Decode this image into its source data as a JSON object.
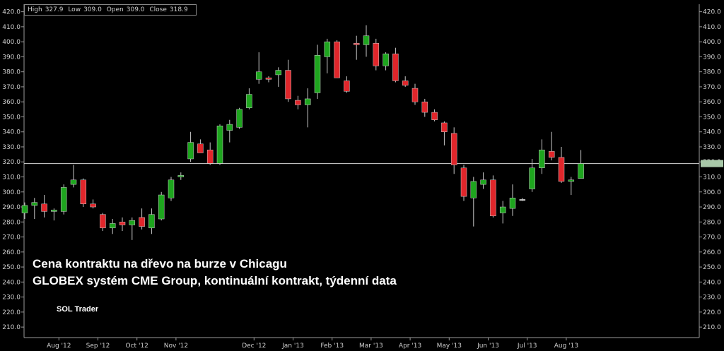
{
  "info": {
    "high_label": "High",
    "high": "327.9",
    "low_label": "Low",
    "low": "309.0",
    "open_label": "Open",
    "open": "309.0",
    "close_label": "Close",
    "close": "318.9"
  },
  "captions": {
    "line1": "Cena kontraktu na dřevo na burze v Chicagu",
    "line2": "GLOBEX systém CME Group, kontinuální kontrakt, týdenní data",
    "brand": "SOL Trader"
  },
  "colors": {
    "up": "#1ea51e",
    "down": "#e0262b",
    "neutral": "#c8c8c8",
    "current_price_tag": "#a8c8a8"
  },
  "chart_data": {
    "type": "candlestick",
    "ylim": [
      203,
      425
    ],
    "yticks": [
      210,
      220,
      230,
      240,
      250,
      260,
      270,
      280,
      290,
      300,
      310,
      320,
      330,
      340,
      350,
      360,
      370,
      380,
      390,
      400,
      410,
      420
    ],
    "current_price": 318.9,
    "x_ticks": [
      {
        "label": "Aug '12",
        "index": 3.5
      },
      {
        "label": "Sep '12",
        "index": 7.5
      },
      {
        "label": "Oct '12",
        "index": 11.5
      },
      {
        "label": "Nov '12",
        "index": 15.5
      },
      {
        "label": "Dec '12",
        "index": 23.5
      },
      {
        "label": "Jan '13",
        "index": 27.5
      },
      {
        "label": "Feb '13",
        "index": 31.5
      },
      {
        "label": "Mar '13",
        "index": 35.5
      },
      {
        "label": "Apr '13",
        "index": 39.5
      },
      {
        "label": "May '13",
        "index": 43.5
      },
      {
        "label": "Jun '13",
        "index": 47.5
      },
      {
        "label": "Jul '13",
        "index": 51.5
      },
      {
        "label": "Aug '13",
        "index": 55.5
      }
    ],
    "candles": [
      {
        "o": 286,
        "h": 293,
        "l": 282,
        "c": 291
      },
      {
        "o": 291,
        "h": 296,
        "l": 282,
        "c": 293
      },
      {
        "o": 292,
        "h": 298,
        "l": 283,
        "c": 287
      },
      {
        "o": 287,
        "h": 289,
        "l": 281,
        "c": 288
      },
      {
        "o": 287,
        "h": 305,
        "l": 285,
        "c": 303
      },
      {
        "o": 305,
        "h": 318,
        "l": 303,
        "c": 308
      },
      {
        "o": 308,
        "h": 309,
        "l": 290,
        "c": 292
      },
      {
        "o": 292,
        "h": 295,
        "l": 289,
        "c": 290
      },
      {
        "o": 285,
        "h": 286,
        "l": 274,
        "c": 276
      },
      {
        "o": 276,
        "h": 282,
        "l": 272,
        "c": 279
      },
      {
        "o": 280,
        "h": 283,
        "l": 274,
        "c": 278
      },
      {
        "o": 278,
        "h": 283,
        "l": 268,
        "c": 281
      },
      {
        "o": 283,
        "h": 289,
        "l": 275,
        "c": 277
      },
      {
        "o": 276,
        "h": 289,
        "l": 272,
        "c": 285
      },
      {
        "o": 282,
        "h": 300,
        "l": 281,
        "c": 298
      },
      {
        "o": 296,
        "h": 310,
        "l": 294,
        "c": 308
      },
      {
        "o": 310,
        "h": 313,
        "l": 308,
        "c": 311
      },
      {
        "o": 322,
        "h": 340,
        "l": 320,
        "c": 333
      },
      {
        "o": 332,
        "h": 335,
        "l": 326,
        "c": 326
      },
      {
        "o": 328,
        "h": 333,
        "l": 318,
        "c": 319
      },
      {
        "o": 319,
        "h": 345,
        "l": 318,
        "c": 344
      },
      {
        "o": 341,
        "h": 348,
        "l": 333,
        "c": 345
      },
      {
        "o": 343,
        "h": 356,
        "l": 342,
        "c": 355
      },
      {
        "o": 356,
        "h": 369,
        "l": 355,
        "c": 365
      },
      {
        "o": 375,
        "h": 393,
        "l": 372,
        "c": 380
      },
      {
        "o": 376,
        "h": 377,
        "l": 373,
        "c": 375
      },
      {
        "o": 378,
        "h": 383,
        "l": 370,
        "c": 381
      },
      {
        "o": 381,
        "h": 388,
        "l": 360,
        "c": 362
      },
      {
        "o": 361,
        "h": 364,
        "l": 355,
        "c": 358
      },
      {
        "o": 358,
        "h": 369,
        "l": 343,
        "c": 362
      },
      {
        "o": 366,
        "h": 398,
        "l": 362,
        "c": 391
      },
      {
        "o": 390,
        "h": 402,
        "l": 379,
        "c": 400
      },
      {
        "o": 400,
        "h": 401,
        "l": 377,
        "c": 376
      },
      {
        "o": 374,
        "h": 377,
        "l": 366,
        "c": 367
      },
      {
        "o": 399,
        "h": 404,
        "l": 388,
        "c": 398
      },
      {
        "o": 398,
        "h": 411,
        "l": 390,
        "c": 404
      },
      {
        "o": 399,
        "h": 402,
        "l": 381,
        "c": 384
      },
      {
        "o": 384,
        "h": 393,
        "l": 381,
        "c": 392
      },
      {
        "o": 392,
        "h": 396,
        "l": 373,
        "c": 374
      },
      {
        "o": 374,
        "h": 377,
        "l": 370,
        "c": 371
      },
      {
        "o": 369,
        "h": 372,
        "l": 358,
        "c": 360
      },
      {
        "o": 360,
        "h": 362,
        "l": 350,
        "c": 353
      },
      {
        "o": 353,
        "h": 355,
        "l": 347,
        "c": 348
      },
      {
        "o": 346,
        "h": 347,
        "l": 331,
        "c": 340
      },
      {
        "o": 339,
        "h": 343,
        "l": 312,
        "c": 318
      },
      {
        "o": 316,
        "h": 318,
        "l": 294,
        "c": 297
      },
      {
        "o": 296,
        "h": 310,
        "l": 277,
        "c": 307
      },
      {
        "o": 305,
        "h": 313,
        "l": 302,
        "c": 308
      },
      {
        "o": 308,
        "h": 311,
        "l": 283,
        "c": 284
      },
      {
        "o": 286,
        "h": 294,
        "l": 279,
        "c": 290
      },
      {
        "o": 289,
        "h": 305,
        "l": 284,
        "c": 296
      },
      {
        "o": 295,
        "h": 296,
        "l": 294,
        "c": 295
      },
      {
        "o": 302,
        "h": 322,
        "l": 300,
        "c": 316
      },
      {
        "o": 316,
        "h": 335,
        "l": 312,
        "c": 328
      },
      {
        "o": 327,
        "h": 340,
        "l": 321,
        "c": 323
      },
      {
        "o": 323,
        "h": 330,
        "l": 306,
        "c": 307
      },
      {
        "o": 307,
        "h": 310,
        "l": 298,
        "c": 308
      },
      {
        "o": 309,
        "h": 327.9,
        "l": 309,
        "c": 318.9
      }
    ]
  }
}
